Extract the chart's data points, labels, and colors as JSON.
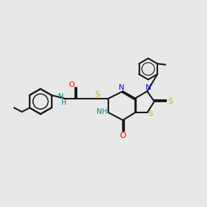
{
  "background_color": "#e8e8e8",
  "bond_color": "#1a1a1a",
  "atom_colors": {
    "N": "#0000ff",
    "O": "#ff0000",
    "S": "#ccaa00",
    "NH": "#008080",
    "C": "#1a1a1a"
  },
  "figsize": [
    3.0,
    3.0
  ],
  "dpi": 100
}
